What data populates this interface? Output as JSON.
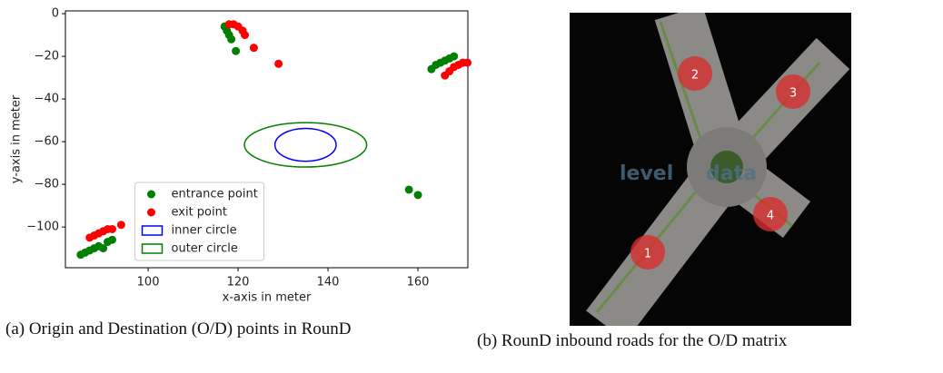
{
  "chart_data": {
    "type": "scatter",
    "xlabel": "x-axis in meter",
    "ylabel": "y-axis in meter",
    "xlim": [
      81.6,
      171.1
    ],
    "ylim": [
      -119.1,
      1.3
    ],
    "xticks": [
      100,
      120,
      140,
      160
    ],
    "yticks": [
      0,
      {
        "value": -20,
        "label": "−20"
      },
      {
        "value": -40,
        "label": "−40"
      },
      {
        "value": -60,
        "label": "−60"
      },
      {
        "value": -80,
        "label": "−80"
      },
      {
        "value": -100,
        "label": "−100"
      }
    ],
    "legend": "lower center",
    "series": [
      {
        "name": "entrance point",
        "color": "#008000",
        "x": [
          117,
          117.5,
          118,
          118.5,
          119.5,
          163,
          164,
          165,
          166,
          167,
          168,
          85,
          86,
          87,
          88,
          89,
          90,
          91,
          92,
          158,
          160
        ],
        "y": [
          -6,
          -8,
          -10,
          -12,
          -17.5,
          -26,
          -24,
          -23,
          -22,
          -21,
          -20,
          -113,
          -112,
          -111,
          -110,
          -109,
          -110,
          -107,
          -106,
          -82.5,
          -85
        ]
      },
      {
        "name": "exit point",
        "color": "#ff0000",
        "x": [
          118,
          119,
          120,
          121,
          121.5,
          123.5,
          129,
          166,
          167,
          168,
          169,
          170,
          171,
          87,
          88,
          89,
          90,
          91,
          92,
          94
        ],
        "y": [
          -5,
          -5,
          -6,
          -8,
          -10,
          -16,
          -23.5,
          -29,
          -27,
          -25,
          -24,
          -23,
          -23,
          -105,
          -104,
          -103,
          -102,
          -101,
          -101,
          -99
        ]
      }
    ],
    "ellipses": [
      {
        "name": "inner circle",
        "color": "#0000ff",
        "cx": 135,
        "cy": -61.5,
        "rx": 6.8,
        "ry": 7.7
      },
      {
        "name": "outer circle",
        "color": "#008000",
        "cx": 135,
        "cy": -61.5,
        "rx": 13.6,
        "ry": 10.4
      }
    ]
  },
  "figure_a": {
    "caption": "(a) Origin and Destination (O/D) points in RounD"
  },
  "figure_b": {
    "caption": "(b) RounD inbound roads for the O/D matrix",
    "watermark": [
      "level",
      "data"
    ],
    "markers": [
      "1",
      "2",
      "3",
      "4"
    ]
  }
}
